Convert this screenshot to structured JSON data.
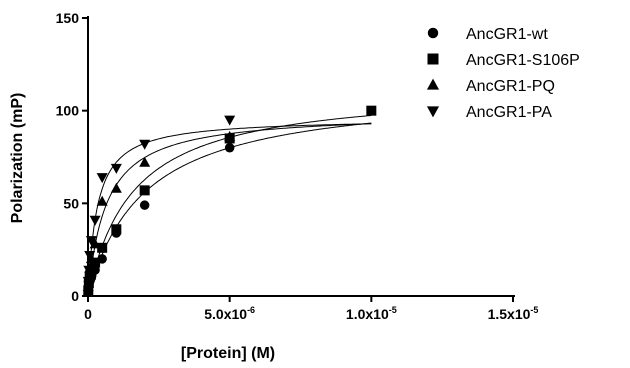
{
  "chart_data": {
    "type": "scatter",
    "xlabel": "[Protein] (M)",
    "ylabel": "Polarization  (mP)",
    "xlim": [
      0,
      1.5e-05
    ],
    "ylim": [
      0,
      150
    ],
    "x_ticks": [
      {
        "value": 0,
        "base": "0",
        "exp": ""
      },
      {
        "value": 5e-06,
        "base": "5.0x10",
        "exp": "-6"
      },
      {
        "value": 1e-05,
        "base": "1.0x10",
        "exp": "-5"
      },
      {
        "value": 1.5e-05,
        "base": "1.5x10",
        "exp": "-5"
      }
    ],
    "y_ticks": [
      {
        "value": 0,
        "label": "0"
      },
      {
        "value": 50,
        "label": "50"
      },
      {
        "value": 100,
        "label": "100"
      },
      {
        "value": 150,
        "label": "150"
      }
    ],
    "legend_position": "top-right",
    "series": [
      {
        "name": "AncGR1-wt",
        "marker": "circle",
        "points": [
          [
            1e-08,
            4
          ],
          [
            3e-08,
            6
          ],
          [
            6e-08,
            8
          ],
          [
            1.2e-07,
            10
          ],
          [
            2.5e-07,
            14
          ],
          [
            5e-07,
            20
          ],
          [
            1e-06,
            34
          ],
          [
            2e-06,
            49
          ],
          [
            5e-06,
            80
          ]
        ],
        "fit": {
          "bmax": 112,
          "kd": 2e-06
        }
      },
      {
        "name": "AncGR1-S106P",
        "marker": "square",
        "points": [
          [
            1e-08,
            3
          ],
          [
            3e-08,
            7
          ],
          [
            6e-08,
            10
          ],
          [
            1.2e-07,
            13
          ],
          [
            2.5e-07,
            18
          ],
          [
            5e-07,
            26
          ],
          [
            1e-06,
            36
          ],
          [
            2e-06,
            57
          ],
          [
            5e-06,
            85
          ],
          [
            1e-05,
            100
          ]
        ],
        "fit": {
          "bmax": 113,
          "kd": 1.6e-06
        }
      },
      {
        "name": "AncGR1-PQ",
        "marker": "triangle-up",
        "points": [
          [
            1e-08,
            5
          ],
          [
            3e-08,
            10
          ],
          [
            6e-08,
            15
          ],
          [
            1.2e-07,
            20
          ],
          [
            2.5e-07,
            28
          ],
          [
            5e-07,
            51
          ],
          [
            1e-06,
            58
          ],
          [
            2e-06,
            72
          ],
          [
            5e-06,
            86
          ]
        ],
        "fit": {
          "bmax": 99,
          "kd": 6.5e-07
        }
      },
      {
        "name": "AncGR1-PA",
        "marker": "triangle-down",
        "points": [
          [
            1e-08,
            8
          ],
          [
            3e-08,
            14
          ],
          [
            6e-08,
            22
          ],
          [
            1.2e-07,
            30
          ],
          [
            2.5e-07,
            41
          ],
          [
            5e-07,
            64
          ],
          [
            1e-06,
            69
          ],
          [
            2e-06,
            82
          ],
          [
            5e-06,
            95
          ]
        ],
        "fit": {
          "bmax": 96,
          "kd": 3.3e-07
        }
      }
    ]
  }
}
